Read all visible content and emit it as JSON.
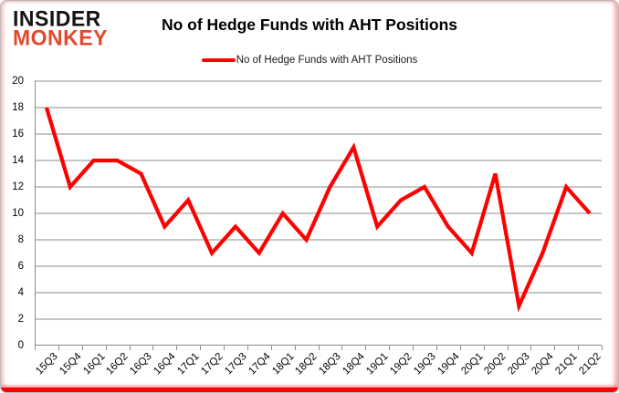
{
  "logo": {
    "line1": "INSIDER",
    "line2": "MONKEY"
  },
  "header": {
    "title": "No of Hedge Funds with AHT Positions"
  },
  "legend": {
    "label": "No of Hedge Funds with AHT Positions",
    "swatch_color": "#ff0000"
  },
  "colors": {
    "line": "#ff0000",
    "grid": "#8c8c8c",
    "axis": "#8c8c8c",
    "logo_accent": "#e2492f",
    "frame_bottom": "#ff0000"
  },
  "chart_data": {
    "type": "line",
    "title": "No of Hedge Funds with AHT Positions",
    "categories": [
      "15Q3",
      "15Q4",
      "16Q1",
      "16Q2",
      "16Q3",
      "16Q4",
      "17Q1",
      "17Q2",
      "17Q3",
      "17Q4",
      "18Q1",
      "18Q2",
      "18Q3",
      "18Q4",
      "19Q1",
      "19Q2",
      "19Q3",
      "19Q4",
      "20Q1",
      "20Q2",
      "20Q3",
      "20Q4",
      "21Q1",
      "21Q2"
    ],
    "series": [
      {
        "name": "No of Hedge Funds with AHT Positions",
        "color": "#ff0000",
        "values": [
          18,
          12,
          14,
          14,
          13,
          9,
          11,
          7,
          9,
          7,
          10,
          8,
          12,
          15,
          9,
          11,
          12,
          9,
          7,
          13,
          3,
          7,
          12,
          10
        ]
      }
    ],
    "xlabel": "",
    "ylabel": "",
    "ylim": [
      0,
      20
    ],
    "ytick_step": 2,
    "grid": "horizontal",
    "legend_position": "top"
  }
}
